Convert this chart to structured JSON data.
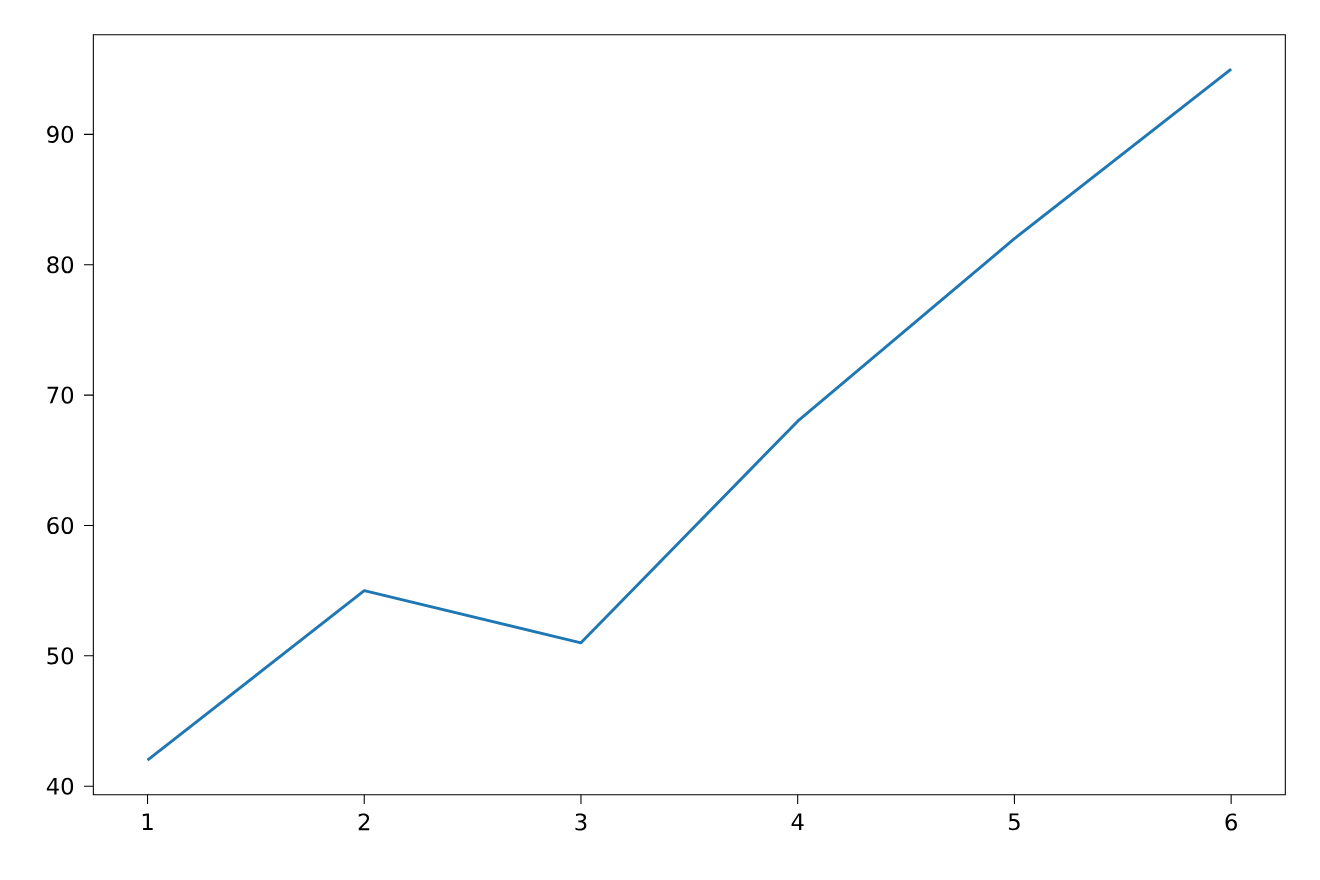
{
  "chart_data": {
    "type": "line",
    "x": [
      1,
      2,
      3,
      4,
      5,
      6
    ],
    "series": [
      {
        "color": "#1f77b4",
        "values": [
          42,
          55,
          51,
          68,
          82,
          95
        ]
      }
    ],
    "xlim": [
      0.75,
      6.25
    ],
    "ylim": [
      39.35,
      97.65
    ],
    "xticks": [
      1,
      2,
      3,
      4,
      5,
      6
    ],
    "yticks": [
      40,
      50,
      60,
      70,
      80,
      90
    ],
    "grid": false
  }
}
